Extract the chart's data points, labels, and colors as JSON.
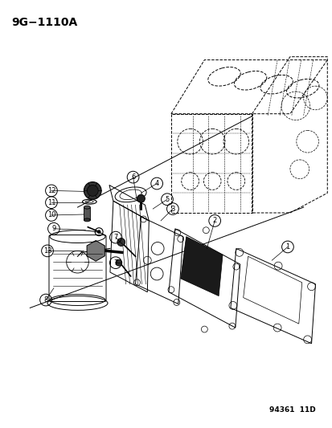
{
  "title": "9G−1110A",
  "footer": "94361  11D",
  "bg_color": "#ffffff",
  "title_fontsize": 10,
  "footer_fontsize": 6.5,
  "label_circle_r": 0.018,
  "label_fontsize": 6,
  "lw": 0.7
}
